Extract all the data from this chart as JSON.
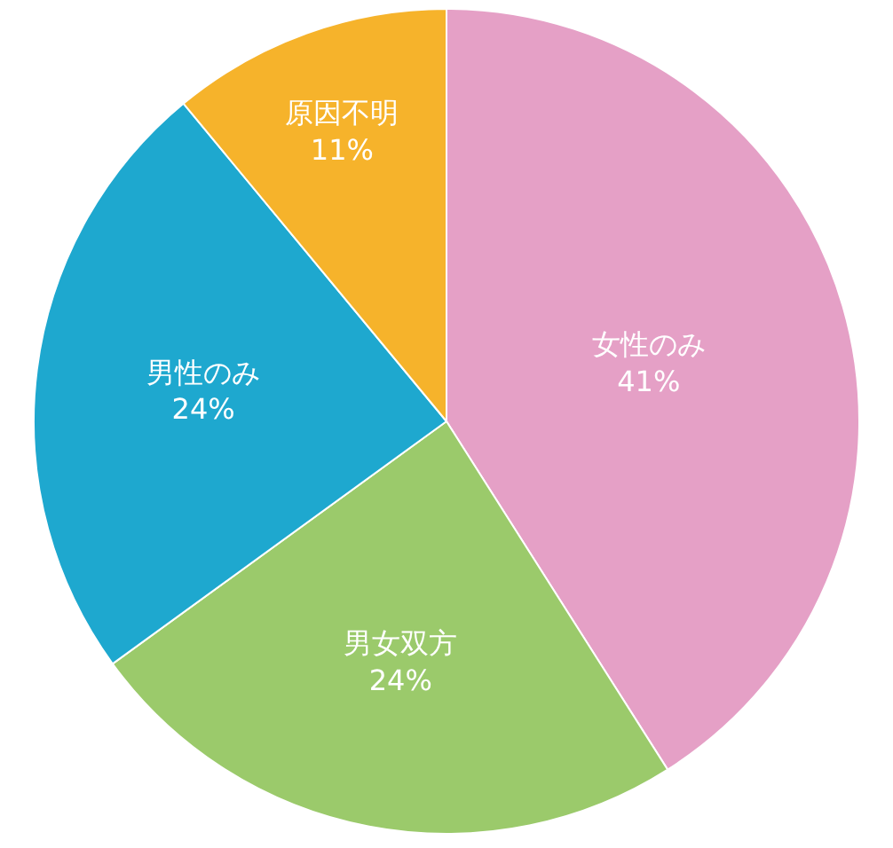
{
  "chart_data": {
    "type": "pie",
    "categories": [
      "女性のみ",
      "男女双方",
      "男性のみ",
      "原因不明"
    ],
    "values": [
      41,
      24,
      24,
      11
    ],
    "value_labels": [
      "41%",
      "24%",
      "24%",
      "11%"
    ],
    "colors": [
      "#e5a0c6",
      "#9bca6b",
      "#1ea8cf",
      "#f6b32b"
    ],
    "legend": false
  }
}
